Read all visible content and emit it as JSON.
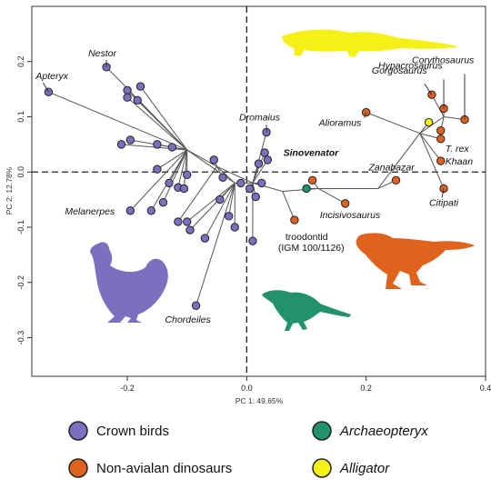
{
  "chart_data": {
    "type": "scatter",
    "title": "",
    "xlabel": "PC 1: 49.65%",
    "ylabel": "PC 2: 12.78%",
    "xlim": [
      -0.36,
      0.4
    ],
    "ylim": [
      -0.37,
      0.3
    ],
    "xticks": [
      -0.2,
      0,
      0.2,
      0.4
    ],
    "xtick_labels": [
      "-0.2",
      "0.0",
      "0.2",
      "0.4"
    ],
    "yticks": [
      -0.3,
      -0.2,
      -0.1,
      0,
      0.1,
      0.2
    ],
    "ytick_labels": [
      "-0.3",
      "-0.2",
      "-0.1",
      "0.0",
      "0.1",
      "0.2"
    ],
    "grid": false,
    "reference_lines": {
      "x": 0,
      "y": 0,
      "style": "dashed"
    },
    "legend_position": "bottom",
    "groups": [
      {
        "name": "Crown birds",
        "color": "#7b6fc0"
      },
      {
        "name": "Non-avialan dinosaurs",
        "color": "#e0631d"
      },
      {
        "name": "Archaeopteryx",
        "color": "#21926b"
      },
      {
        "name": "Alligator",
        "color": "#f4f018"
      }
    ],
    "points": [
      {
        "group": "Crown birds",
        "x": -0.332,
        "y": 0.145,
        "label": "Apteryx"
      },
      {
        "group": "Crown birds",
        "x": -0.235,
        "y": 0.19,
        "label": "Nestor"
      },
      {
        "group": "Crown birds",
        "x": 0.033,
        "y": 0.072,
        "label": "Dromaius"
      },
      {
        "group": "Crown birds",
        "x": -0.195,
        "y": -0.07,
        "label": "Melanerpes"
      },
      {
        "group": "Crown birds",
        "x": -0.085,
        "y": -0.242,
        "label": "Chordeiles"
      },
      {
        "group": "Crown birds",
        "x": -0.2,
        "y": 0.148
      },
      {
        "group": "Crown birds",
        "x": -0.178,
        "y": 0.155
      },
      {
        "group": "Crown birds",
        "x": -0.2,
        "y": 0.135
      },
      {
        "group": "Crown birds",
        "x": -0.183,
        "y": 0.13
      },
      {
        "group": "Crown birds",
        "x": -0.21,
        "y": 0.05
      },
      {
        "group": "Crown birds",
        "x": -0.195,
        "y": 0.058
      },
      {
        "group": "Crown birds",
        "x": -0.15,
        "y": 0.05
      },
      {
        "group": "Crown birds",
        "x": -0.125,
        "y": 0.045
      },
      {
        "group": "Crown birds",
        "x": -0.15,
        "y": 0.005
      },
      {
        "group": "Crown birds",
        "x": -0.13,
        "y": -0.02
      },
      {
        "group": "Crown birds",
        "x": -0.115,
        "y": -0.028
      },
      {
        "group": "Crown birds",
        "x": -0.1,
        "y": -0.005
      },
      {
        "group": "Crown birds",
        "x": -0.105,
        "y": -0.03
      },
      {
        "group": "Crown birds",
        "x": -0.16,
        "y": -0.07
      },
      {
        "group": "Crown birds",
        "x": -0.14,
        "y": -0.055
      },
      {
        "group": "Crown birds",
        "x": -0.115,
        "y": -0.09
      },
      {
        "group": "Crown birds",
        "x": -0.1,
        "y": -0.09
      },
      {
        "group": "Crown birds",
        "x": -0.095,
        "y": -0.105
      },
      {
        "group": "Crown birds",
        "x": -0.07,
        "y": -0.12
      },
      {
        "group": "Crown birds",
        "x": -0.055,
        "y": 0.022
      },
      {
        "group": "Crown birds",
        "x": -0.04,
        "y": -0.01
      },
      {
        "group": "Crown birds",
        "x": -0.045,
        "y": -0.05
      },
      {
        "group": "Crown birds",
        "x": -0.03,
        "y": -0.08
      },
      {
        "group": "Crown birds",
        "x": -0.02,
        "y": -0.1
      },
      {
        "group": "Crown birds",
        "x": -0.01,
        "y": -0.02
      },
      {
        "group": "Crown birds",
        "x": 0.005,
        "y": -0.03
      },
      {
        "group": "Crown birds",
        "x": 0.015,
        "y": -0.045
      },
      {
        "group": "Crown birds",
        "x": 0.02,
        "y": 0.015
      },
      {
        "group": "Crown birds",
        "x": 0.03,
        "y": 0.035
      },
      {
        "group": "Crown birds",
        "x": 0.035,
        "y": 0.022
      },
      {
        "group": "Crown birds",
        "x": 0.025,
        "y": -0.02
      },
      {
        "group": "Crown birds",
        "x": 0.01,
        "y": -0.125
      },
      {
        "group": "Non-avialan dinosaurs",
        "x": 0.11,
        "y": -0.015,
        "label": "Sinovenator"
      },
      {
        "group": "Non-avialan dinosaurs",
        "x": 0.2,
        "y": 0.108,
        "label": "Alioramus"
      },
      {
        "group": "Non-avialan dinosaurs",
        "x": 0.25,
        "y": -0.015,
        "label": "Zanabazar"
      },
      {
        "group": "Non-avialan dinosaurs",
        "x": 0.165,
        "y": -0.057,
        "label": "Incisivosaurus"
      },
      {
        "group": "Non-avialan dinosaurs",
        "x": 0.33,
        "y": -0.03,
        "label": "Citipati"
      },
      {
        "group": "Non-avialan dinosaurs",
        "x": 0.08,
        "y": -0.087,
        "label": "troodontid\n(IGM 100/1126)"
      },
      {
        "group": "Non-avialan dinosaurs",
        "x": 0.31,
        "y": 0.14,
        "label": "Gorgosaurus"
      },
      {
        "group": "Non-avialan dinosaurs",
        "x": 0.33,
        "y": 0.115,
        "label": "Hypacrosaurus"
      },
      {
        "group": "Non-avialan dinosaurs",
        "x": 0.365,
        "y": 0.095,
        "label": "Corythosaurus"
      },
      {
        "group": "Non-avialan dinosaurs",
        "x": 0.325,
        "y": 0.075
      },
      {
        "group": "Non-avialan dinosaurs",
        "x": 0.325,
        "y": 0.06,
        "label": "T. rex"
      },
      {
        "group": "Non-avialan dinosaurs",
        "x": 0.325,
        "y": 0.02,
        "label": "Khaan"
      },
      {
        "group": "Archaeopteryx",
        "x": 0.1,
        "y": -0.03
      },
      {
        "group": "Alligator",
        "x": 0.305,
        "y": 0.09
      }
    ]
  }
}
